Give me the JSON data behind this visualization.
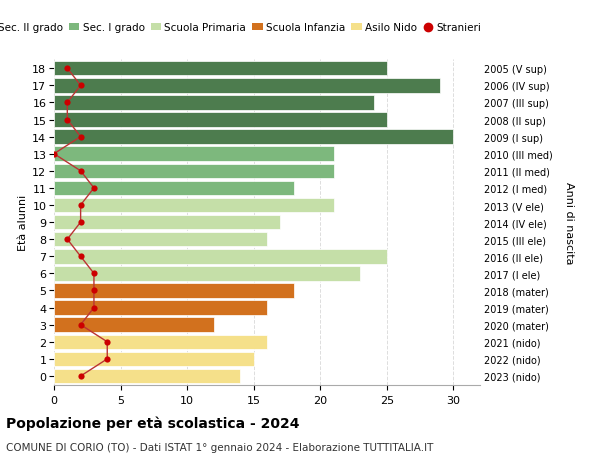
{
  "ages": [
    18,
    17,
    16,
    15,
    14,
    13,
    12,
    11,
    10,
    9,
    8,
    7,
    6,
    5,
    4,
    3,
    2,
    1,
    0
  ],
  "values": [
    25,
    29,
    24,
    25,
    30,
    21,
    21,
    18,
    21,
    17,
    16,
    25,
    23,
    18,
    16,
    12,
    16,
    15,
    14
  ],
  "stranieri": [
    1,
    2,
    1,
    1,
    2,
    0,
    2,
    3,
    2,
    2,
    1,
    2,
    3,
    3,
    3,
    2,
    4,
    4,
    2
  ],
  "right_labels": [
    "2005 (V sup)",
    "2006 (IV sup)",
    "2007 (III sup)",
    "2008 (II sup)",
    "2009 (I sup)",
    "2010 (III med)",
    "2011 (II med)",
    "2012 (I med)",
    "2013 (V ele)",
    "2014 (IV ele)",
    "2015 (III ele)",
    "2016 (II ele)",
    "2017 (I ele)",
    "2018 (mater)",
    "2019 (mater)",
    "2020 (mater)",
    "2021 (nido)",
    "2022 (nido)",
    "2023 (nido)"
  ],
  "bar_colors": [
    "#4d7c4e",
    "#4d7c4e",
    "#4d7c4e",
    "#4d7c4e",
    "#4d7c4e",
    "#7db87d",
    "#7db87d",
    "#7db87d",
    "#c5dfa8",
    "#c5dfa8",
    "#c5dfa8",
    "#c5dfa8",
    "#c5dfa8",
    "#d2711e",
    "#d2711e",
    "#d2711e",
    "#f5e08a",
    "#f5e08a",
    "#f5e08a"
  ],
  "legend_labels": [
    "Sec. II grado",
    "Sec. I grado",
    "Scuola Primaria",
    "Scuola Infanzia",
    "Asilo Nido",
    "Stranieri"
  ],
  "legend_colors": [
    "#4d7c4e",
    "#7db87d",
    "#c5dfa8",
    "#d2711e",
    "#f5e08a",
    "#cc0000"
  ],
  "title": "Popolazione per età scolastica - 2024",
  "subtitle": "COMUNE DI CORIO (TO) - Dati ISTAT 1° gennaio 2024 - Elaborazione TUTTITALIA.IT",
  "ylabel": "Età alunni",
  "right_ylabel": "Anni di nascita",
  "xlim": [
    0,
    32
  ],
  "background_color": "#ffffff",
  "grid_color": "#dddddd",
  "stranieri_color": "#cc0000",
  "stranieri_line_color": "#bb3333"
}
